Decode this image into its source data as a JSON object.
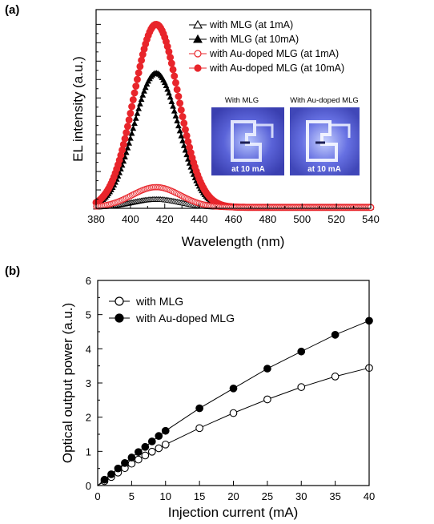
{
  "chart_data": [
    {
      "panel": "(a)",
      "type": "line",
      "xlabel": "Wavelength (nm)",
      "ylabel": "EL intensity (a.u.)",
      "xlim": [
        380,
        540
      ],
      "xticks": [
        380,
        400,
        420,
        440,
        460,
        480,
        500,
        520,
        540
      ],
      "ylim": [
        0,
        1.08
      ],
      "y_ticks_labeled": false,
      "legend_position": "top-right",
      "series": [
        {
          "name": "with MLG (at 1mA)",
          "marker": "open-triangle",
          "color": "#000000",
          "peak_x": 415,
          "peak_y": 0.049,
          "width": 14,
          "baseline": 0.005
        },
        {
          "name": "with MLG (at 10mA)",
          "marker": "filled-triangle",
          "color": "#000000",
          "peak_x": 415,
          "peak_y": 0.735,
          "width": 13,
          "baseline": 0.005
        },
        {
          "name": "with Au-doped MLG (at 1mA)",
          "marker": "open-circle",
          "color": "#e8252b",
          "peak_x": 415,
          "peak_y": 0.115,
          "width": 14,
          "baseline": 0.005
        },
        {
          "name": "with Au-doped MLG (at 10mA)",
          "marker": "filled-circle",
          "color": "#e8252b",
          "peak_x": 415,
          "peak_y": 1.0,
          "width": 13,
          "baseline": 0.005
        }
      ],
      "insets": [
        {
          "label": "With MLG",
          "caption": "at 10 mA"
        },
        {
          "label": "With Au-doped MLG",
          "caption": "at 10 mA"
        }
      ]
    },
    {
      "panel": "(b)",
      "type": "line",
      "xlabel": "Injection current (mA)",
      "ylabel": "Optical output power (a.u.)",
      "xlim": [
        0,
        40
      ],
      "ylim": [
        0,
        6
      ],
      "xticks": [
        0,
        5,
        10,
        15,
        20,
        25,
        30,
        35,
        40
      ],
      "yticks": [
        0,
        1,
        2,
        3,
        4,
        5,
        6
      ],
      "legend_position": "top-left",
      "series": [
        {
          "name": "with MLG",
          "marker": "open-circle",
          "color": "#000000",
          "x": [
            1,
            2,
            3,
            4,
            5,
            6,
            7,
            8,
            9,
            10,
            15,
            20,
            25,
            30,
            35,
            40
          ],
          "y": [
            0.13,
            0.25,
            0.38,
            0.51,
            0.64,
            0.76,
            0.88,
            0.99,
            1.09,
            1.2,
            1.68,
            2.12,
            2.52,
            2.88,
            3.19,
            3.44
          ]
        },
        {
          "name": "with Au-doped MLG",
          "marker": "filled-circle",
          "color": "#000000",
          "x": [
            1,
            2,
            3,
            4,
            5,
            6,
            7,
            8,
            9,
            10,
            15,
            20,
            25,
            30,
            35,
            40
          ],
          "y": [
            0.17,
            0.33,
            0.5,
            0.66,
            0.82,
            0.98,
            1.13,
            1.29,
            1.45,
            1.6,
            2.26,
            2.84,
            3.42,
            3.92,
            4.41,
            4.82
          ]
        }
      ]
    }
  ]
}
